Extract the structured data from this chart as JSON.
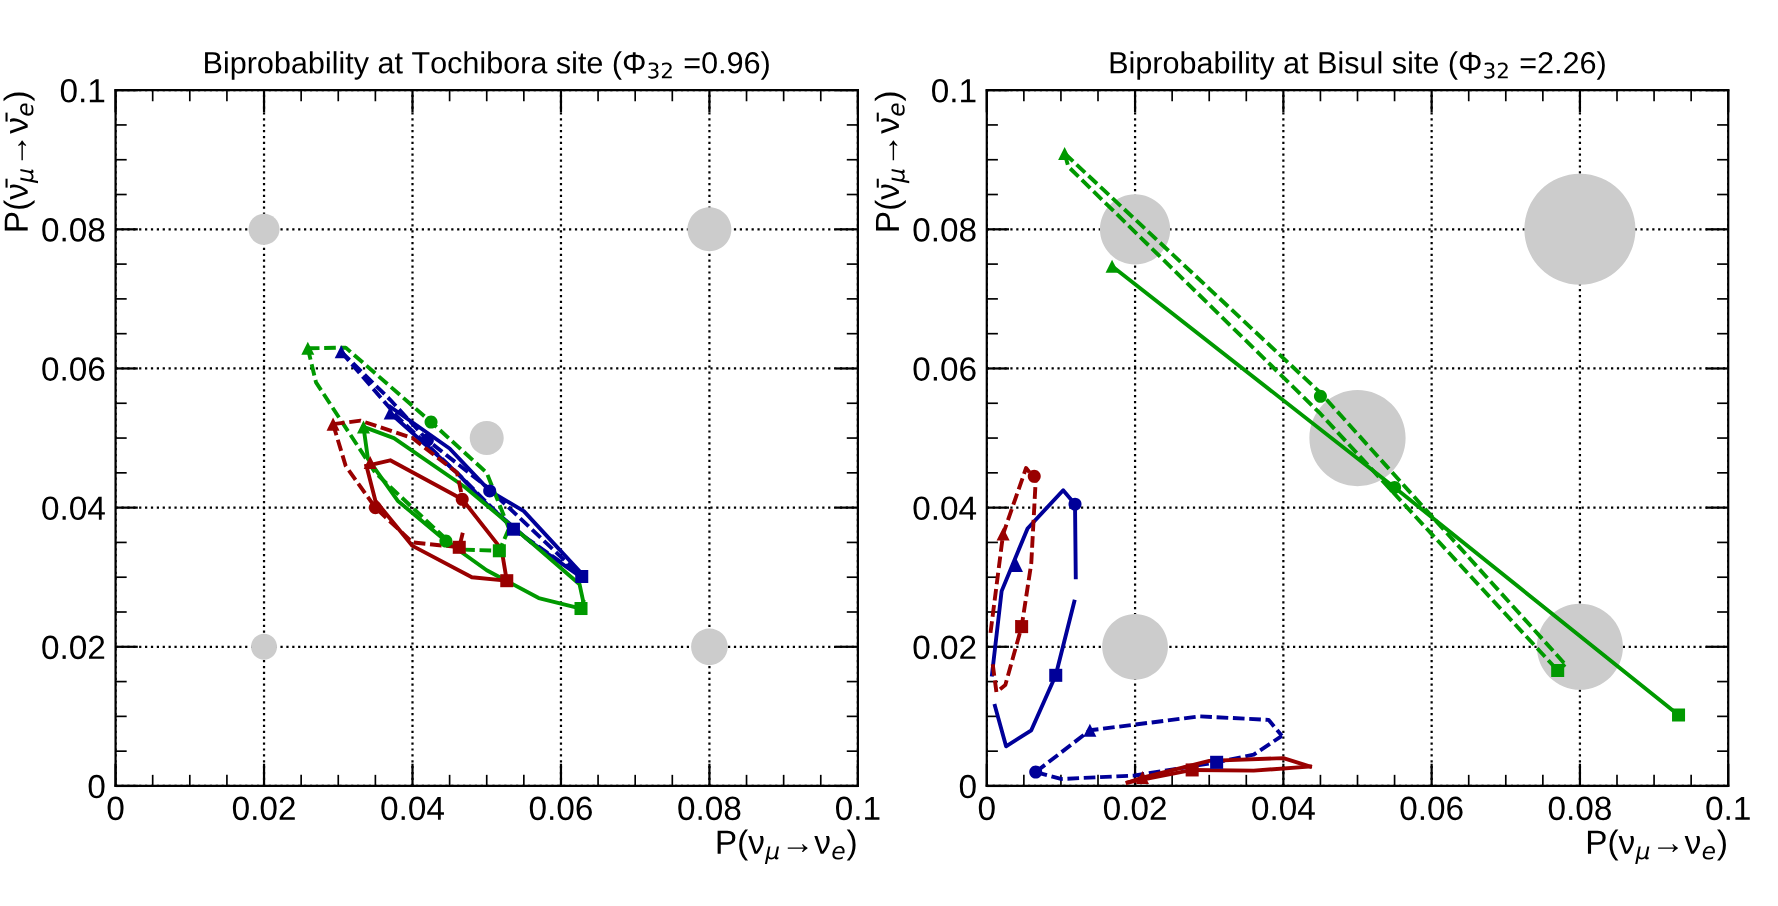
{
  "chart_data": [
    {
      "type": "line",
      "title": "Biprobability at Tochibora site (Φ$_{32}$ =0.96)",
      "xlabel": "P(ν$_{μ}$→ν$_{e}$)",
      "ylabel": "P(ν̄$_{μ}$→ν̄$_{e}$)",
      "xlim": [
        0,
        0.1
      ],
      "ylim": [
        0,
        0.1
      ],
      "xticks": [
        0,
        0.02,
        0.04,
        0.06,
        0.08,
        0.1
      ],
      "yticks": [
        0,
        0.02,
        0.04,
        0.06,
        0.08,
        0.1
      ],
      "grid": true,
      "series": [
        {
          "type": "bubble",
          "color": "#cccccc",
          "x": [
            0.02,
            0.08,
            0.05,
            0.02,
            0.08
          ],
          "values": [
            0.08,
            0.08,
            0.05,
            0.02,
            0.02
          ],
          "sizes": [
            0.5,
            1,
            0.6,
            0.35,
            0.7
          ]
        },
        {
          "color": "#000099",
          "line_style": "solid",
          "x": [
            0.037,
            0.045,
            0.0504,
            0.055,
            0.0628
          ],
          "values": [
            0.0545,
            0.0485,
            0.0424,
            0.0395,
            0.0305
          ]
        },
        {
          "color": "#000099",
          "line_style": "solid",
          "x": [
            0.037,
            0.046,
            0.05,
            0.056,
            0.063
          ],
          "values": [
            0.0536,
            0.045,
            0.0405,
            0.035,
            0.0298
          ]
        },
        {
          "color": "#000099",
          "line_style": "dashed",
          "x": [
            0.0304,
            0.037,
            0.042,
            0.05,
            0.0628
          ],
          "values": [
            0.0624,
            0.0555,
            0.0497,
            0.043,
            0.0301
          ]
        },
        {
          "color": "#000099",
          "line_style": "dashed",
          "x": [
            0.0304,
            0.038,
            0.046,
            0.0536,
            0.0628
          ],
          "values": [
            0.0624,
            0.053,
            0.045,
            0.0369,
            0.0301
          ]
        },
        {
          "color": "#009900",
          "line_style": "solid",
          "x": [
            0.0334,
            0.0375,
            0.047,
            0.056,
            0.0625,
            0.063
          ],
          "values": [
            0.0516,
            0.05,
            0.043,
            0.035,
            0.029,
            0.0265
          ]
        },
        {
          "color": "#009900",
          "line_style": "solid",
          "x": [
            0.0334,
            0.034,
            0.038,
            0.0445,
            0.05,
            0.057,
            0.0627,
            0.063
          ],
          "values": [
            0.0516,
            0.047,
            0.041,
            0.0352,
            0.031,
            0.027,
            0.0255,
            0.0265
          ]
        },
        {
          "color": "#009900",
          "line_style": "dashed",
          "x": [
            0.0259,
            0.031,
            0.0425,
            0.05,
            0.053
          ],
          "values": [
            0.0629,
            0.063,
            0.0523,
            0.045,
            0.037
          ]
        },
        {
          "color": "#009900",
          "line_style": "dashed",
          "x": [
            0.0259,
            0.027,
            0.035,
            0.046,
            0.0517,
            0.053
          ],
          "values": [
            0.0629,
            0.058,
            0.045,
            0.034,
            0.0338,
            0.037
          ]
        },
        {
          "color": "#990000",
          "line_style": "solid",
          "x": [
            0.0338,
            0.037,
            0.0467,
            0.052,
            0.0527
          ],
          "values": [
            0.046,
            0.0468,
            0.0412,
            0.034,
            0.0295
          ]
        },
        {
          "color": "#990000",
          "line_style": "solid",
          "x": [
            0.0338,
            0.035,
            0.04,
            0.048,
            0.0527
          ],
          "values": [
            0.046,
            0.041,
            0.0345,
            0.03,
            0.0295
          ]
        },
        {
          "color": "#990000",
          "line_style": "dashed",
          "x": [
            0.0293,
            0.033,
            0.04,
            0.046,
            0.047
          ],
          "values": [
            0.052,
            0.0525,
            0.05,
            0.045,
            0.04
          ]
        },
        {
          "color": "#990000",
          "line_style": "dashed",
          "x": [
            0.0293,
            0.031,
            0.035,
            0.04,
            0.0463,
            0.0468
          ],
          "values": [
            0.052,
            0.046,
            0.04,
            0.035,
            0.0343,
            0.0365
          ]
        },
        {
          "type": "scatter",
          "marker": "triangle",
          "x": [
            0.037,
            0.0304,
            0.0259,
            0.0293,
            0.0334,
            0.0343
          ],
          "values": [
            0.0536,
            0.0624,
            0.0629,
            0.052,
            0.0516,
            0.0465
          ],
          "colors": [
            "#000099",
            "#000099",
            "#009900",
            "#990000",
            "#009900",
            "#990000"
          ]
        },
        {
          "type": "scatter",
          "marker": "circle",
          "x": [
            0.0504,
            0.042,
            0.0445,
            0.0425,
            0.0467,
            0.035
          ],
          "values": [
            0.0424,
            0.0497,
            0.0352,
            0.0523,
            0.0412,
            0.04
          ],
          "colors": [
            "#000099",
            "#000099",
            "#009900",
            "#009900",
            "#990000",
            "#990000"
          ]
        },
        {
          "type": "scatter",
          "marker": "square",
          "x": [
            0.0628,
            0.0536,
            0.0627,
            0.0517,
            0.0527,
            0.0463
          ],
          "values": [
            0.0301,
            0.0369,
            0.0255,
            0.0338,
            0.0295,
            0.0343
          ],
          "colors": [
            "#000099",
            "#000099",
            "#009900",
            "#009900",
            "#990000",
            "#990000"
          ]
        }
      ]
    },
    {
      "type": "line",
      "title": "Biprobability at Bisul site (Φ$_{32}$ =2.26)",
      "xlabel": "P(ν$_{μ}$→ν$_{e}$)",
      "ylabel": "P(ν̄$_{μ}$→ν̄$_{e}$)",
      "xlim": [
        0,
        0.1
      ],
      "ylim": [
        0,
        0.1
      ],
      "xticks": [
        0,
        0.02,
        0.04,
        0.06,
        0.08,
        0.1
      ],
      "yticks": [
        0,
        0.02,
        0.04,
        0.06,
        0.08,
        0.1
      ],
      "grid": true,
      "series": [
        {
          "type": "bubble",
          "color": "#cccccc",
          "x": [
            0.02,
            0.08,
            0.05,
            0.02,
            0.08
          ],
          "values": [
            0.08,
            0.08,
            0.05,
            0.02,
            0.02
          ],
          "sizes": [
            0.4,
            1,
            0.75,
            0.35,
            0.6
          ]
        },
        {
          "color": "#009900",
          "line_style": "solid",
          "x": [
            0.0169,
            0.055,
            0.0933
          ],
          "values": [
            0.0747,
            0.0429,
            0.0102
          ]
        },
        {
          "color": "#009900",
          "line_style": "dashed",
          "x": [
            0.0105,
            0.045,
            0.078
          ],
          "values": [
            0.0909,
            0.0565,
            0.0175
          ]
        },
        {
          "color": "#009900",
          "line_style": "dashed",
          "x": [
            0.0105,
            0.011,
            0.045,
            0.077,
            0.078
          ],
          "values": [
            0.0909,
            0.089,
            0.0535,
            0.0166,
            0.0175
          ]
        },
        {
          "color": "#000099",
          "line_style": "solid",
          "x": [
            0.0007,
            0.002,
            0.0055,
            0.0103,
            0.0119,
            0.012
          ],
          "values": [
            0.016,
            0.028,
            0.037,
            0.0425,
            0.0405,
            0.03
          ]
        },
        {
          "color": "#000099",
          "line_style": "solid",
          "x": [
            0.0011,
            0.0026,
            0.006,
            0.0093,
            0.0118
          ],
          "values": [
            0.0115,
            0.0057,
            0.008,
            0.0159,
            0.0265
          ]
        },
        {
          "color": "#990000",
          "line_style": "dashed",
          "x": [
            0.0005,
            0.0022,
            0.0053,
            0.0066
          ],
          "values": [
            0.022,
            0.0362,
            0.0457,
            0.044
          ]
        },
        {
          "color": "#990000",
          "line_style": "dashed",
          "x": [
            0.0008,
            0.0013,
            0.0025,
            0.0047,
            0.006,
            0.0066
          ],
          "values": [
            0.0175,
            0.0135,
            0.0145,
            0.0229,
            0.032,
            0.044
          ]
        },
        {
          "color": "#000099",
          "line_style": "dashed",
          "x": [
            0.0066,
            0.0139,
            0.0287,
            0.038,
            0.0398
          ],
          "values": [
            0.002,
            0.008,
            0.01,
            0.0095,
            0.0072
          ]
        },
        {
          "color": "#000099",
          "line_style": "dashed",
          "x": [
            0.0066,
            0.01,
            0.02,
            0.031,
            0.036,
            0.0398
          ],
          "values": [
            0.002,
            0.001,
            0.0015,
            0.0034,
            0.0045,
            0.0072
          ]
        },
        {
          "color": "#990000",
          "line_style": "solid",
          "x": [
            0.019,
            0.021,
            0.03,
            0.04,
            0.0436
          ],
          "values": [
            0.0005,
            0.0012,
            0.0036,
            0.004,
            0.0028
          ]
        },
        {
          "color": "#990000",
          "line_style": "solid",
          "x": [
            0.019,
            0.0277,
            0.036,
            0.0436
          ],
          "values": [
            0.0005,
            0.0023,
            0.0022,
            0.0028
          ]
        },
        {
          "type": "scatter",
          "marker": "triangle",
          "x": [
            0.0169,
            0.0105,
            0.004,
            0.0022,
            0.0139,
            0.021
          ],
          "values": [
            0.0747,
            0.0909,
            0.0317,
            0.0362,
            0.008,
            0.0012
          ],
          "colors": [
            "#009900",
            "#009900",
            "#000099",
            "#990000",
            "#000099",
            "#990000"
          ]
        },
        {
          "type": "scatter",
          "marker": "circle",
          "x": [
            0.055,
            0.045,
            0.0119,
            0.0064,
            0.0066
          ],
          "values": [
            0.0429,
            0.056,
            0.0405,
            0.0445,
            0.002
          ],
          "colors": [
            "#009900",
            "#009900",
            "#000099",
            "#990000",
            "#000099"
          ]
        },
        {
          "type": "scatter",
          "marker": "square",
          "x": [
            0.0933,
            0.077,
            0.0093,
            0.0047,
            0.031,
            0.0277
          ],
          "values": [
            0.0102,
            0.0166,
            0.0159,
            0.0229,
            0.0034,
            0.0023
          ],
          "colors": [
            "#009900",
            "#009900",
            "#000099",
            "#990000",
            "#000099",
            "#990000"
          ]
        }
      ]
    }
  ]
}
